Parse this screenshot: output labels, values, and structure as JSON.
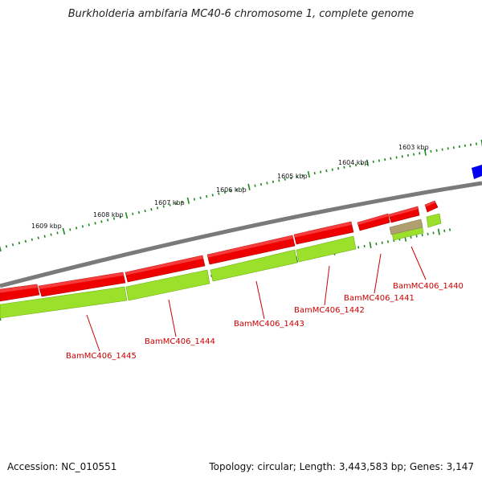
{
  "title": "Burkholderia ambifaria MC40-6 chromosome 1, complete genome",
  "footer": {
    "accession": "Accession: NC_010551",
    "summary": "Topology: circular; Length: 3,443,583 bp; Genes: 3,147"
  },
  "colors": {
    "backbone": "#7a7a7a",
    "gene_forward": "#ee0000",
    "cds_green": "#9be02a",
    "pseudo_tan": "#b0a070",
    "other_blue": "#0000ee",
    "tick": "#1a8a1a",
    "label_red": "#cc0000"
  },
  "kbp_labels": [
    "1603 kbp",
    "1604 kbp",
    "1605 kbp",
    "1606 kbp",
    "1607 kbp",
    "1608 kbp",
    "1609 kbp"
  ],
  "genes": [
    {
      "name": "BamMC406_1440"
    },
    {
      "name": "BamMC406_1441"
    },
    {
      "name": "BamMC406_1442"
    },
    {
      "name": "BamMC406_1443"
    },
    {
      "name": "BamMC406_1444"
    },
    {
      "name": "BamMC406_1445"
    }
  ]
}
